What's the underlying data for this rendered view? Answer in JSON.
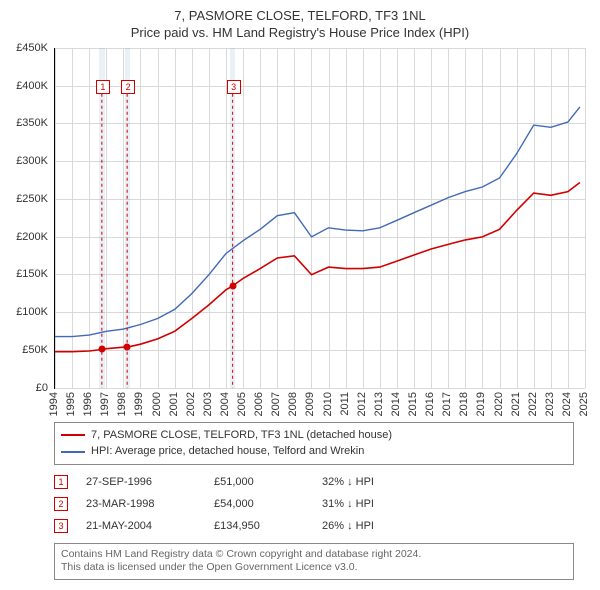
{
  "chart": {
    "type": "line",
    "title": "7, PASMORE CLOSE, TELFORD, TF3 1NL",
    "subtitle": "Price paid vs. HM Land Registry's House Price Index (HPI)",
    "background_color": "#ffffff",
    "grid_color": "#d9d9d9",
    "axis_color": "#000000",
    "title_fontsize": 13,
    "label_fontsize": 11,
    "x": {
      "min": 1994,
      "max": 2025,
      "tick_step": 1,
      "ticks": [
        1994,
        1995,
        1996,
        1997,
        1998,
        1999,
        2000,
        2001,
        2002,
        2003,
        2004,
        2005,
        2006,
        2007,
        2008,
        2009,
        2010,
        2011,
        2012,
        2013,
        2014,
        2015,
        2016,
        2017,
        2018,
        2019,
        2020,
        2021,
        2022,
        2023,
        2024,
        2025
      ]
    },
    "y": {
      "min": 0,
      "max": 450000,
      "tick_step": 50000,
      "ticks": [
        0,
        50000,
        100000,
        150000,
        200000,
        250000,
        300000,
        350000,
        400000,
        450000
      ],
      "tick_labels": [
        "£0",
        "£50K",
        "£100K",
        "£150K",
        "£200K",
        "£250K",
        "£300K",
        "£350K",
        "£400K",
        "£450K"
      ]
    },
    "event_bands": [
      {
        "start": 1996.6,
        "end": 1996.9
      },
      {
        "start": 1998.1,
        "end": 1998.4
      },
      {
        "start": 2004.25,
        "end": 2004.55
      }
    ],
    "series": [
      {
        "id": "price_paid",
        "label": "7, PASMORE CLOSE, TELFORD, TF3 1NL (detached house)",
        "color": "#d00000",
        "line_width": 1.6,
        "xs": [
          1994,
          1995,
          1996,
          1996.74,
          1997,
          1998,
          1998.22,
          1999,
          2000,
          2001,
          2002,
          2003,
          2004,
          2004.39,
          2005,
          2006,
          2007,
          2008,
          2009,
          2010,
          2011,
          2012,
          2013,
          2014,
          2015,
          2016,
          2017,
          2018,
          2019,
          2020,
          2021,
          2022,
          2023,
          2024,
          2024.7
        ],
        "ys": [
          48000,
          48000,
          49000,
          51000,
          52000,
          54000,
          54000,
          58000,
          65000,
          75000,
          92000,
          110000,
          130000,
          134950,
          145000,
          158000,
          172000,
          175000,
          150000,
          160000,
          158000,
          158000,
          160000,
          168000,
          176000,
          184000,
          190000,
          196000,
          200000,
          210000,
          235000,
          258000,
          255000,
          260000,
          272000
        ]
      },
      {
        "id": "hpi",
        "label": "HPI: Average price, detached house, Telford and Wrekin",
        "color": "#4169b8",
        "line_width": 1.4,
        "xs": [
          1994,
          1995,
          1996,
          1997,
          1998,
          1999,
          2000,
          2001,
          2002,
          2003,
          2004,
          2005,
          2006,
          2007,
          2008,
          2009,
          2010,
          2011,
          2012,
          2013,
          2014,
          2015,
          2016,
          2017,
          2018,
          2019,
          2020,
          2021,
          2022,
          2023,
          2024,
          2024.7
        ],
        "ys": [
          68000,
          68000,
          70000,
          75000,
          78000,
          84000,
          92000,
          104000,
          125000,
          150000,
          178000,
          195000,
          210000,
          228000,
          232000,
          200000,
          212000,
          209000,
          208000,
          212000,
          222000,
          232000,
          242000,
          252000,
          260000,
          266000,
          278000,
          310000,
          348000,
          345000,
          352000,
          372000
        ]
      }
    ],
    "event_markers": [
      {
        "n": 1,
        "x": 1996.74,
        "y_box": 400000,
        "color": "#d00000"
      },
      {
        "n": 2,
        "x": 1998.22,
        "y_box": 400000,
        "color": "#d00000"
      },
      {
        "n": 3,
        "x": 2004.39,
        "y_box": 400000,
        "color": "#d00000"
      }
    ],
    "sale_points": [
      {
        "x": 1996.74,
        "y": 51000,
        "color": "#d00000"
      },
      {
        "x": 1998.22,
        "y": 54000,
        "color": "#d00000"
      },
      {
        "x": 2004.39,
        "y": 134950,
        "color": "#d00000"
      }
    ]
  },
  "legend": {
    "items": [
      {
        "color": "#d00000",
        "label": "7, PASMORE CLOSE, TELFORD, TF3 1NL (detached house)"
      },
      {
        "color": "#4169b8",
        "label": "HPI: Average price, detached house, Telford and Wrekin"
      }
    ]
  },
  "events_table": {
    "rows": [
      {
        "n": 1,
        "color": "#d00000",
        "date": "27-SEP-1996",
        "price": "£51,000",
        "delta": "32% ↓ HPI"
      },
      {
        "n": 2,
        "color": "#d00000",
        "date": "23-MAR-1998",
        "price": "£54,000",
        "delta": "31% ↓ HPI"
      },
      {
        "n": 3,
        "color": "#d00000",
        "date": "21-MAY-2004",
        "price": "£134,950",
        "delta": "26% ↓ HPI"
      }
    ]
  },
  "license": {
    "line1": "Contains HM Land Registry data © Crown copyright and database right 2024.",
    "line2": "This data is licensed under the Open Government Licence v3.0."
  }
}
